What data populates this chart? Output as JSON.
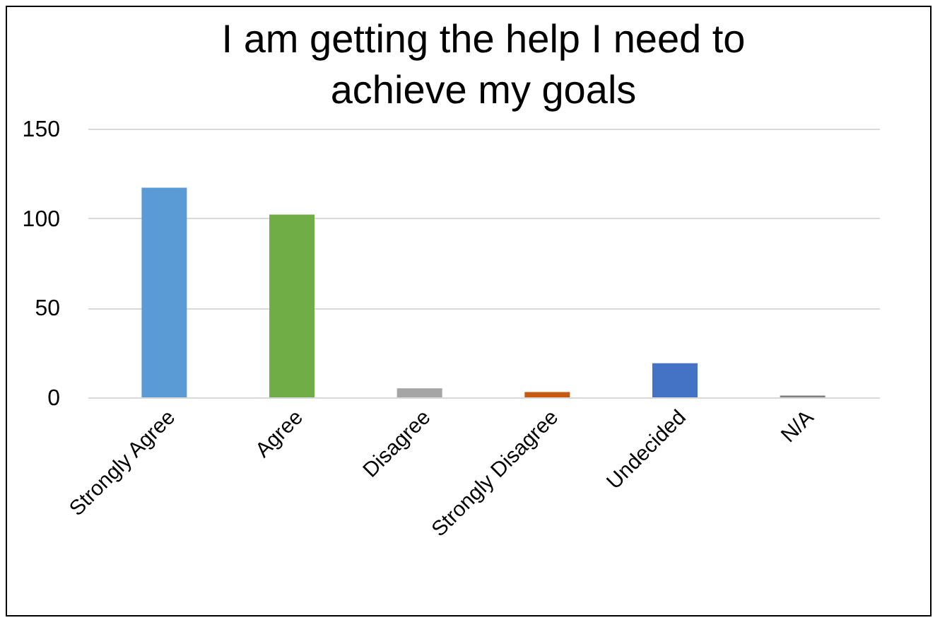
{
  "chart_data": {
    "type": "bar",
    "title": "I am getting the help I need to achieve my goals",
    "categories": [
      "Strongly Agree",
      "Agree",
      "Disagree",
      "Strongly Disagree",
      "Undecided",
      "N/A"
    ],
    "values": [
      117,
      102,
      5,
      3,
      19,
      1
    ],
    "colors": [
      "#5b9bd5",
      "#70ad47",
      "#a5a5a5",
      "#c55a11",
      "#4472c4",
      "#7f7f7f"
    ],
    "ylim": [
      0,
      150
    ],
    "yticks": [
      0,
      50,
      100,
      150
    ],
    "grid": "y"
  }
}
